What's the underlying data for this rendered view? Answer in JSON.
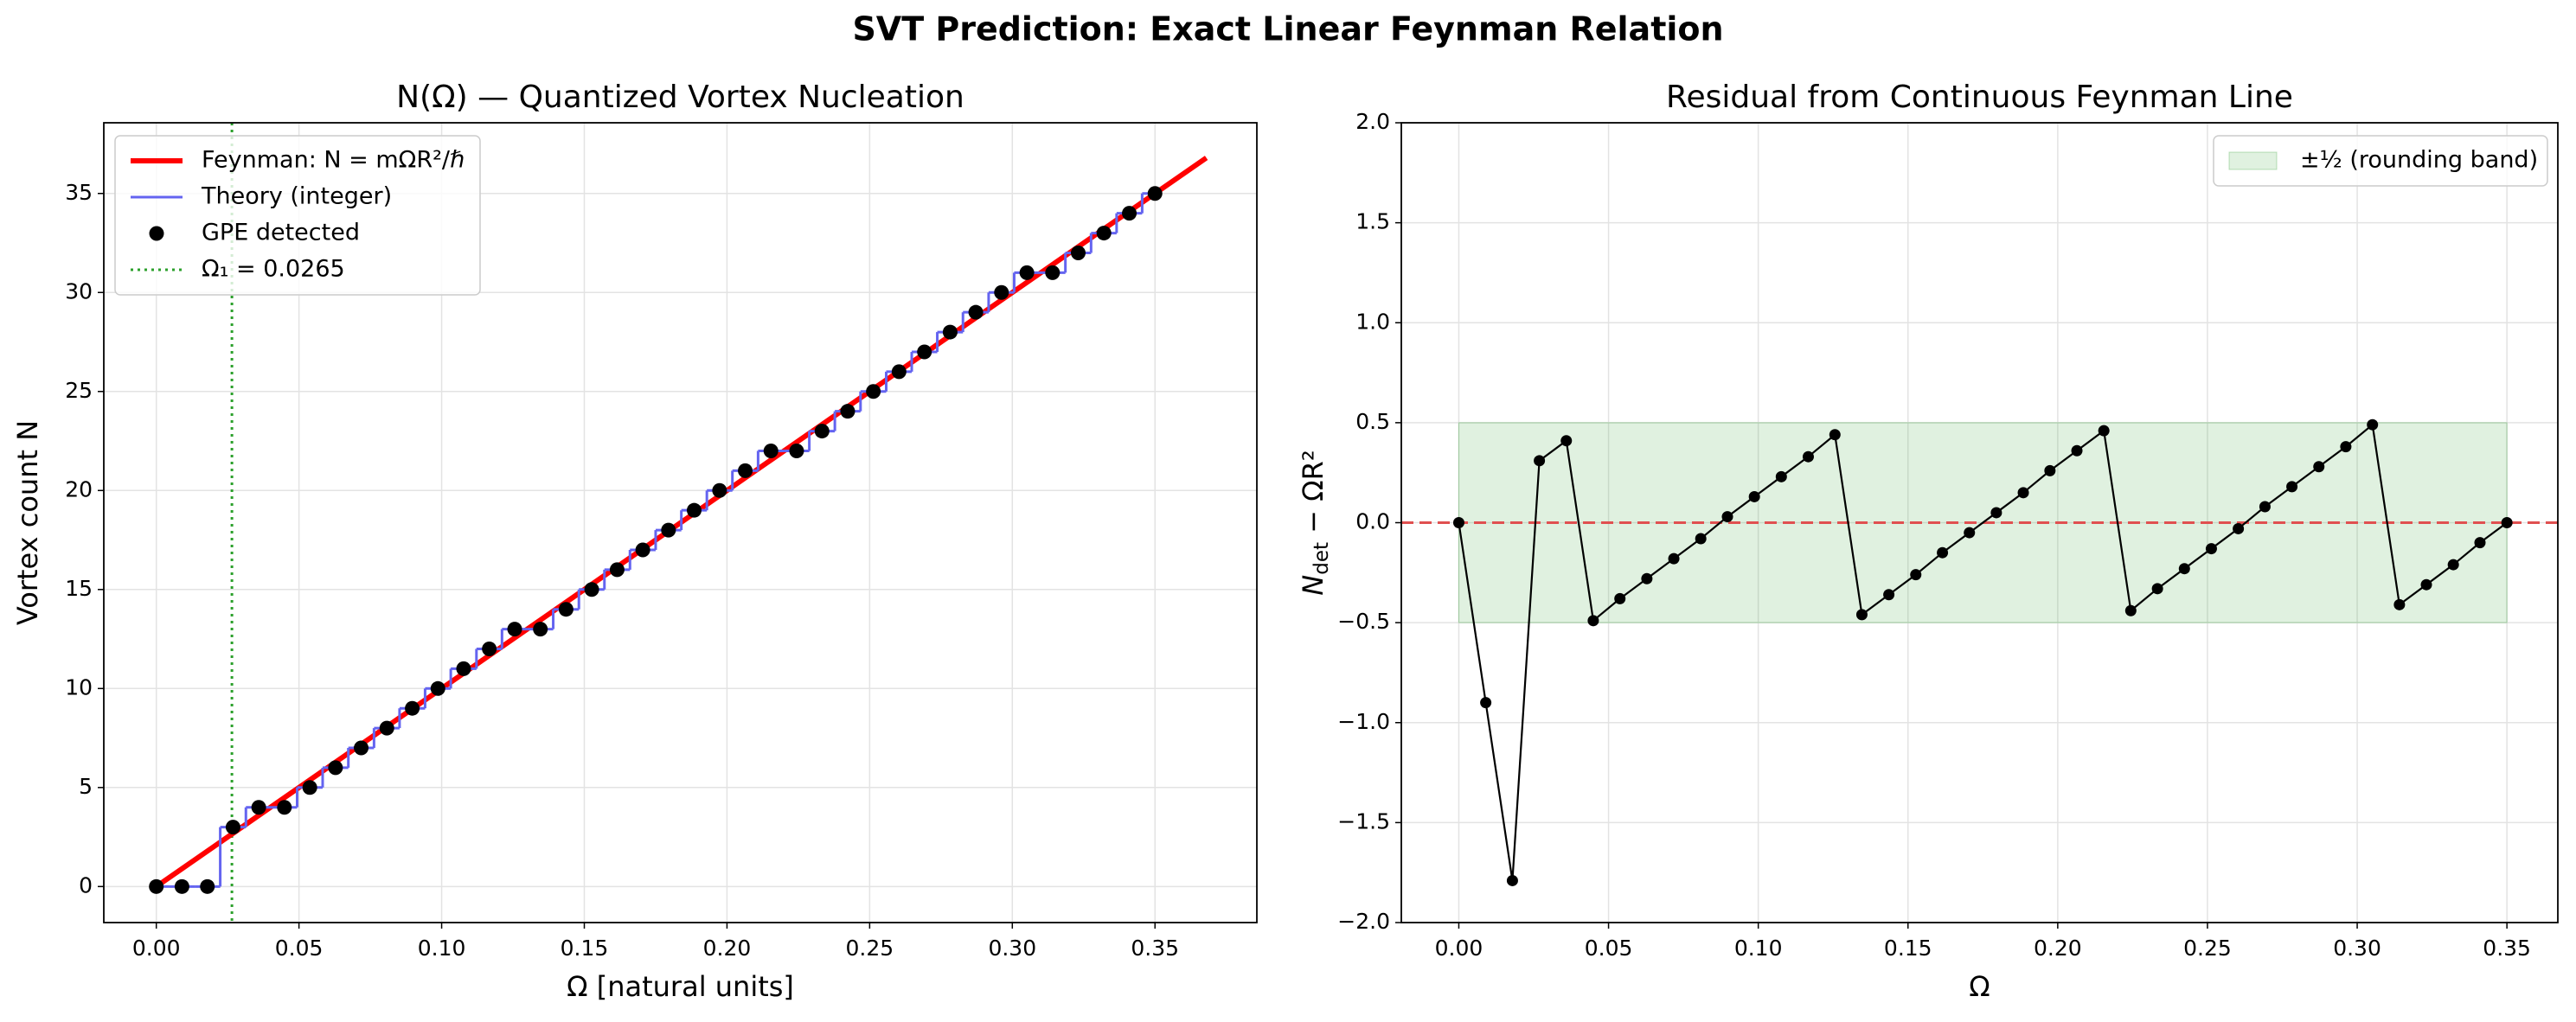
{
  "title": "SVT Prediction: Exact Linear Feynman Relation",
  "chart_data": [
    {
      "type": "line",
      "title": "N(Ω) — Quantized Vortex Nucleation",
      "xlabel": "Ω  [natural units]",
      "ylabel": "Vortex count  N",
      "xlim": [
        -0.0184,
        0.3857
      ],
      "ylim": [
        -1.82,
        38.57
      ],
      "xticks": [
        {
          "value": 0,
          "label": "0.00"
        },
        {
          "value": 0.05,
          "label": "0.05"
        },
        {
          "value": 0.1,
          "label": "0.10"
        },
        {
          "value": 0.15,
          "label": "0.15"
        },
        {
          "value": 0.2,
          "label": "0.20"
        },
        {
          "value": 0.25,
          "label": "0.25"
        },
        {
          "value": 0.3,
          "label": "0.30"
        },
        {
          "value": 0.35,
          "label": "0.35"
        }
      ],
      "yticks": [
        0,
        5,
        10,
        15,
        20,
        25,
        30,
        35
      ],
      "grid": true,
      "legend": "upper left",
      "series": [
        {
          "name": "Feynman:  N = mΩR²/ℏ",
          "color": "#ff0000",
          "style": "line",
          "x": [
            0,
            0.368
          ],
          "values": [
            0,
            36.8
          ]
        },
        {
          "name": "Theory (integer)",
          "color": "#6464f0",
          "style": "steps",
          "x": [
            0,
            0.009,
            0.0179,
            0.0269,
            0.0359,
            0.0449,
            0.0538,
            0.0628,
            0.0718,
            0.0808,
            0.0897,
            0.0987,
            0.1077,
            0.1167,
            0.1256,
            0.1346,
            0.1436,
            0.1526,
            0.1615,
            0.1705,
            0.1795,
            0.1885,
            0.1974,
            0.2064,
            0.2154,
            0.2244,
            0.2333,
            0.2423,
            0.2513,
            0.2603,
            0.2692,
            0.2782,
            0.2872,
            0.2962,
            0.3051,
            0.3141,
            0.3231,
            0.3321,
            0.341,
            0.35
          ],
          "values": [
            0,
            0,
            0,
            3,
            4,
            4,
            5,
            6,
            7,
            8,
            9,
            10,
            11,
            12,
            13,
            13,
            14,
            15,
            16,
            17,
            18,
            19,
            20,
            21,
            22,
            22,
            23,
            24,
            25,
            26,
            27,
            28,
            29,
            30,
            31,
            31,
            32,
            33,
            34,
            35
          ]
        },
        {
          "name": "GPE detected",
          "color": "#000000",
          "style": "markers",
          "x": [
            0,
            0.009,
            0.0179,
            0.0269,
            0.0359,
            0.0449,
            0.0538,
            0.0628,
            0.0718,
            0.0808,
            0.0897,
            0.0987,
            0.1077,
            0.1167,
            0.1256,
            0.1346,
            0.1436,
            0.1526,
            0.1615,
            0.1705,
            0.1795,
            0.1885,
            0.1974,
            0.2064,
            0.2154,
            0.2244,
            0.2333,
            0.2423,
            0.2513,
            0.2603,
            0.2692,
            0.2782,
            0.2872,
            0.2962,
            0.3051,
            0.3141,
            0.3231,
            0.3321,
            0.341,
            0.35
          ],
          "values": [
            0,
            0,
            0,
            3,
            4,
            4,
            5,
            6,
            7,
            8,
            9,
            10,
            11,
            12,
            13,
            13,
            14,
            15,
            16,
            17,
            18,
            19,
            20,
            21,
            22,
            22,
            23,
            24,
            25,
            26,
            27,
            28,
            29,
            30,
            31,
            31,
            32,
            33,
            34,
            35
          ]
        }
      ],
      "vline": {
        "label": "Ω₁ = 0.0265",
        "x": 0.0265,
        "color": "#2ca02c"
      }
    },
    {
      "type": "line",
      "title": "Residual from Continuous Feynman Line",
      "xlabel": "Ω",
      "ylabel": [
        "N",
        "det",
        " − ΩR²"
      ],
      "xlim": [
        -0.0192,
        0.367
      ],
      "ylim": [
        -2,
        2
      ],
      "xticks": [
        {
          "value": 0,
          "label": "0.00"
        },
        {
          "value": 0.05,
          "label": "0.05"
        },
        {
          "value": 0.1,
          "label": "0.10"
        },
        {
          "value": 0.15,
          "label": "0.15"
        },
        {
          "value": 0.2,
          "label": "0.20"
        },
        {
          "value": 0.25,
          "label": "0.25"
        },
        {
          "value": 0.3,
          "label": "0.30"
        },
        {
          "value": 0.35,
          "label": "0.35"
        }
      ],
      "yticks": [
        {
          "value": -2,
          "label": "−2.0"
        },
        {
          "value": -1.5,
          "label": "−1.5"
        },
        {
          "value": -1,
          "label": "−1.0"
        },
        {
          "value": -0.5,
          "label": "−0.5"
        },
        {
          "value": 0,
          "label": "0.0"
        },
        0.5,
        {
          "value": 1,
          "label": "1.0"
        },
        1.5,
        {
          "value": 2,
          "label": "2.0"
        }
      ],
      "grid": true,
      "legend": "upper right",
      "series": [
        {
          "color": "#000000",
          "style": "line-markers",
          "x": [
            0,
            0.009,
            0.0179,
            0.0269,
            0.0359,
            0.0449,
            0.0538,
            0.0628,
            0.0718,
            0.0808,
            0.0897,
            0.0987,
            0.1077,
            0.1167,
            0.1256,
            0.1346,
            0.1436,
            0.1526,
            0.1615,
            0.1705,
            0.1795,
            0.1885,
            0.1974,
            0.2064,
            0.2154,
            0.2244,
            0.2333,
            0.2423,
            0.2513,
            0.2603,
            0.2692,
            0.2782,
            0.2872,
            0.2962,
            0.3051,
            0.3141,
            0.3231,
            0.3321,
            0.341,
            0.35
          ],
          "values": [
            0,
            -0.9,
            -1.79,
            0.31,
            0.41,
            -0.49,
            -0.38,
            -0.28,
            -0.18,
            -0.08,
            0.03,
            0.13,
            0.23,
            0.33,
            0.44,
            -0.46,
            -0.36,
            -0.26,
            -0.15,
            -0.05,
            0.05,
            0.15,
            0.26,
            0.36,
            0.46,
            -0.44,
            -0.33,
            -0.23,
            -0.13,
            -0.03,
            0.08,
            0.18,
            0.28,
            0.38,
            0.49,
            -0.41,
            -0.31,
            -0.21,
            -0.1,
            0
          ]
        }
      ],
      "band": {
        "label": "±½ (rounding band)",
        "lower": -0.5,
        "upper": 0.5,
        "color": "#2ca02c"
      },
      "hline": {
        "y": 0,
        "color": "#e05050"
      }
    }
  ]
}
